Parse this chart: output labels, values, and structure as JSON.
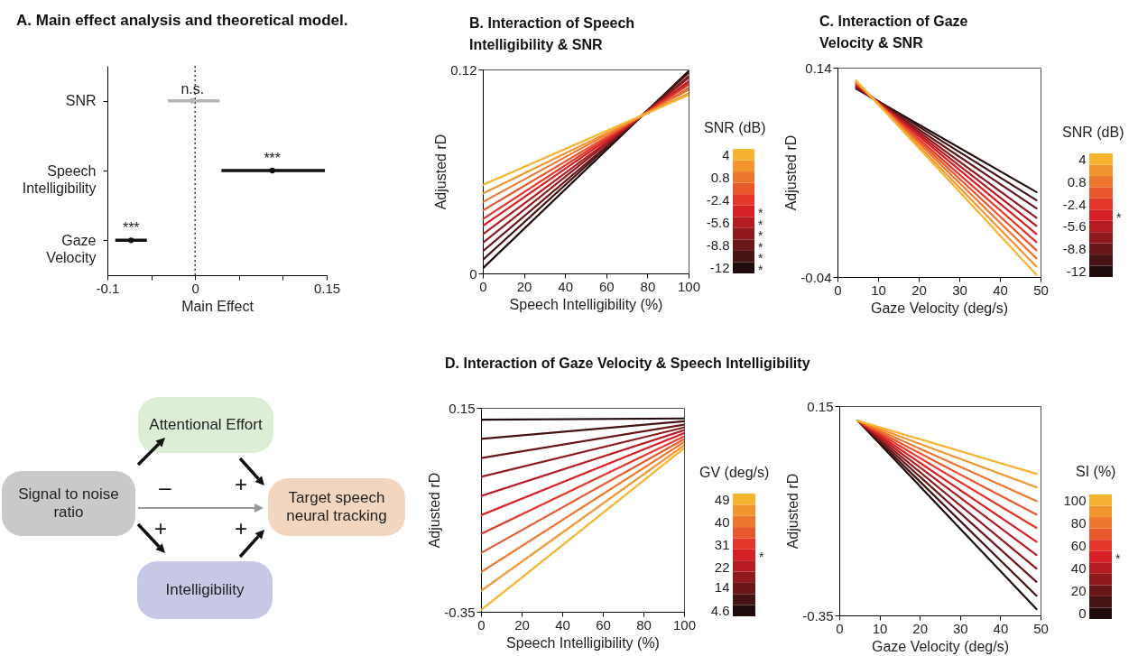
{
  "chart_data": [
    {
      "type": "scatter",
      "orientation": "horizontal",
      "marker": "circle",
      "title": "A. Main effect analysis and theoretical model.",
      "categories": [
        "SNR",
        "Speech Intelligibility",
        "Gaze Velocity"
      ],
      "values": [
        -0.003,
        0.088,
        -0.073
      ],
      "errors": [
        [
          -0.031,
          0.028
        ],
        [
          0.03,
          0.148
        ],
        [
          -0.091,
          -0.055
        ]
      ],
      "colors": [
        "#b4b4b8",
        "#111111",
        "#111111"
      ],
      "xlim": [
        -0.1,
        0.15
      ],
      "xticks": [
        -0.1,
        {
          "value": -0.05,
          "label": null
        },
        0,
        {
          "value": 0.05,
          "label": null
        },
        {
          "value": 0.1,
          "label": null
        },
        0.15
      ],
      "xlabel": "Main Effect",
      "ref_lines": [
        {
          "axis": "x",
          "value": 0,
          "line_style": "dotted"
        }
      ],
      "annotations": [
        "n.s.",
        "***",
        "***"
      ]
    },
    {
      "type": "line",
      "title": "B. Interaction of Speech Intelligibility & SNR",
      "x": [
        0,
        100
      ],
      "xlim": [
        0,
        100
      ],
      "xticks": [
        0,
        20,
        40,
        60,
        80,
        100
      ],
      "ylim": [
        0,
        0.12
      ],
      "yticks": [
        0,
        0.12
      ],
      "xlabel": "Speech Intelligibility (%)",
      "ylabel": "Adjusted rD",
      "clabel": "SNR (dB)",
      "clim": [
        -12,
        4
      ],
      "cticks": [
        -12,
        -8.8,
        -5.6,
        -2.4,
        0.8,
        4
      ],
      "annotations": [
        "*",
        "*",
        "*",
        "*",
        "*",
        "*"
      ],
      "series": [
        {
          "color": "#200c0c",
          "values": [
            0.003,
            0.119
          ]
        },
        {
          "color": "#451313",
          "values": [
            0.008,
            0.118
          ]
        },
        {
          "color": "#6a171a",
          "values": [
            0.013,
            0.116
          ]
        },
        {
          "color": "#8f1a1e",
          "values": [
            0.018,
            0.115
          ]
        },
        {
          "color": "#b41c22",
          "values": [
            0.023,
            0.113
          ]
        },
        {
          "color": "#d52025",
          "values": [
            0.028,
            0.112
          ]
        },
        {
          "color": "#e2372a",
          "values": [
            0.032,
            0.111
          ]
        },
        {
          "color": "#e9572c",
          "values": [
            0.037,
            0.109
          ]
        },
        {
          "color": "#ee762d",
          "values": [
            0.042,
            0.108
          ]
        },
        {
          "color": "#f2952e",
          "values": [
            0.047,
            0.106
          ]
        },
        {
          "color": "#f5b32f",
          "values": [
            0.052,
            0.105
          ]
        }
      ]
    },
    {
      "type": "line",
      "title": "C. Interaction of Gaze Velocity & SNR",
      "x": [
        4.6,
        49
      ],
      "xlim": [
        0,
        50
      ],
      "xticks": [
        0,
        10,
        20,
        30,
        40,
        50
      ],
      "ylim": [
        -0.04,
        0.14
      ],
      "yticks": [
        -0.04,
        0.14
      ],
      "xlabel": "Gaze Velocity (deg/s)",
      "ylabel": "Adjusted rD",
      "clabel": "SNR (dB)",
      "clim": [
        -12,
        4
      ],
      "cticks": [
        -12,
        -8.8,
        -5.6,
        -2.4,
        0.8,
        4
      ],
      "annotations": [
        "*"
      ],
      "series": [
        {
          "color": "#200c0c",
          "values": [
            0.122,
            0.033
          ]
        },
        {
          "color": "#451313",
          "values": [
            0.123,
            0.026
          ]
        },
        {
          "color": "#6a171a",
          "values": [
            0.123,
            0.019
          ]
        },
        {
          "color": "#8f1a1e",
          "values": [
            0.124,
            0.011
          ]
        },
        {
          "color": "#b41c22",
          "values": [
            0.125,
            0.004
          ]
        },
        {
          "color": "#d52025",
          "values": [
            0.126,
            -0.003
          ]
        },
        {
          "color": "#e2372a",
          "values": [
            0.126,
            -0.01
          ]
        },
        {
          "color": "#e9572c",
          "values": [
            0.127,
            -0.017
          ]
        },
        {
          "color": "#ee762d",
          "values": [
            0.128,
            -0.024
          ]
        },
        {
          "color": "#f2952e",
          "values": [
            0.128,
            -0.031
          ]
        },
        {
          "color": "#f5b32f",
          "values": [
            0.129,
            -0.038
          ]
        }
      ]
    },
    {
      "type": "other",
      "categories": [
        "Attentional Effort",
        "Signal to noise ratio",
        "Target speech neural tracking",
        "Intelligibility"
      ],
      "colors": [
        "#dcefd6",
        "#c9c9c9",
        "#f3d6c0",
        "#c7c8e6"
      ],
      "annotations": [
        "–",
        "+",
        "+",
        "+"
      ]
    },
    {
      "type": "line",
      "title": "D. Interaction of Gaze Velocity & Speech Intelligibility",
      "x": [
        0,
        100
      ],
      "xlim": [
        0,
        100
      ],
      "xticks": [
        0,
        20,
        40,
        60,
        80,
        100
      ],
      "ylim": [
        -0.35,
        0.15
      ],
      "yticks": [
        -0.35,
        0.15
      ],
      "xlabel": "Speech Intelligibility (%)",
      "ylabel": "Adjusted rD",
      "clabel": "GV (deg/s)",
      "clim": [
        4.6,
        49
      ],
      "cticks": [
        4.6,
        14,
        22,
        31,
        40,
        49
      ],
      "annotations": [
        "*"
      ],
      "series": [
        {
          "color": "#200c0c",
          "values": [
            0.121,
            0.124
          ]
        },
        {
          "color": "#451313",
          "values": [
            0.074,
            0.117
          ]
        },
        {
          "color": "#6a171a",
          "values": [
            0.027,
            0.109
          ]
        },
        {
          "color": "#8f1a1e",
          "values": [
            -0.019,
            0.102
          ]
        },
        {
          "color": "#b41c22",
          "values": [
            -0.066,
            0.095
          ]
        },
        {
          "color": "#d52025",
          "values": [
            -0.113,
            0.088
          ]
        },
        {
          "color": "#e2372a",
          "values": [
            -0.159,
            0.08
          ]
        },
        {
          "color": "#e9572c",
          "values": [
            -0.206,
            0.073
          ]
        },
        {
          "color": "#ee762d",
          "values": [
            -0.253,
            0.066
          ]
        },
        {
          "color": "#f2952e",
          "values": [
            -0.299,
            0.058
          ]
        },
        {
          "color": "#f5b32f",
          "values": [
            -0.346,
            0.051
          ]
        }
      ]
    },
    {
      "type": "line",
      "x": [
        4.6,
        49
      ],
      "xlim": [
        0,
        50
      ],
      "xticks": [
        0,
        10,
        20,
        30,
        40,
        50
      ],
      "ylim": [
        -0.35,
        0.15
      ],
      "yticks": [
        -0.35,
        0.15
      ],
      "xlabel": "Gaze Velocity (deg/s)",
      "ylabel": "Adjusted rD",
      "clabel": "SI (%)",
      "clim": [
        0,
        100
      ],
      "cticks": [
        0,
        20,
        40,
        60,
        80,
        100
      ],
      "annotations": [
        "*"
      ],
      "series": [
        {
          "color": "#200c0c",
          "values": [
            0.115,
            -0.335
          ]
        },
        {
          "color": "#451313",
          "values": [
            0.115,
            -0.303
          ]
        },
        {
          "color": "#6a171a",
          "values": [
            0.115,
            -0.27
          ]
        },
        {
          "color": "#8f1a1e",
          "values": [
            0.115,
            -0.238
          ]
        },
        {
          "color": "#b41c22",
          "values": [
            0.115,
            -0.206
          ]
        },
        {
          "color": "#d52025",
          "values": [
            0.115,
            -0.174
          ]
        },
        {
          "color": "#e2372a",
          "values": [
            0.115,
            -0.141
          ]
        },
        {
          "color": "#e9572c",
          "values": [
            0.115,
            -0.109
          ]
        },
        {
          "color": "#ee762d",
          "values": [
            0.115,
            -0.077
          ]
        },
        {
          "color": "#f2952e",
          "values": [
            0.115,
            -0.044
          ]
        },
        {
          "color": "#f5b32f",
          "values": [
            0.115,
            -0.012
          ]
        }
      ]
    }
  ]
}
